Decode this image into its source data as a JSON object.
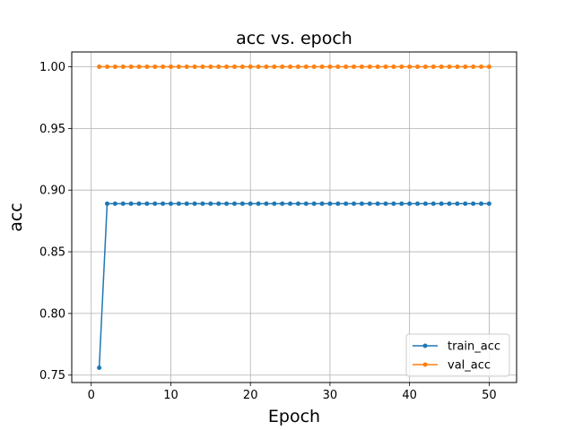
{
  "chart_data": {
    "type": "line",
    "title": "acc vs. epoch",
    "xlabel": "Epoch",
    "ylabel": "acc",
    "xlim": [
      -2.45,
      53.45
    ],
    "ylim": [
      0.744,
      1.012
    ],
    "xticks": [
      0,
      10,
      20,
      30,
      40,
      50
    ],
    "yticks": [
      0.75,
      0.8,
      0.85,
      0.9,
      0.95,
      1.0
    ],
    "ytick_labels": [
      "0.75",
      "0.80",
      "0.85",
      "0.90",
      "0.95",
      "1.00"
    ],
    "grid": true,
    "legend_position": "lower-right",
    "x": [
      1,
      2,
      3,
      4,
      5,
      6,
      7,
      8,
      9,
      10,
      11,
      12,
      13,
      14,
      15,
      16,
      17,
      18,
      19,
      20,
      21,
      22,
      23,
      24,
      25,
      26,
      27,
      28,
      29,
      30,
      31,
      32,
      33,
      34,
      35,
      36,
      37,
      38,
      39,
      40,
      41,
      42,
      43,
      44,
      45,
      46,
      47,
      48,
      49,
      50
    ],
    "series": [
      {
        "name": "train_acc",
        "color": "#1f77b4",
        "values": [
          0.756,
          0.889,
          0.889,
          0.889,
          0.889,
          0.889,
          0.889,
          0.889,
          0.889,
          0.889,
          0.889,
          0.889,
          0.889,
          0.889,
          0.889,
          0.889,
          0.889,
          0.889,
          0.889,
          0.889,
          0.889,
          0.889,
          0.889,
          0.889,
          0.889,
          0.889,
          0.889,
          0.889,
          0.889,
          0.889,
          0.889,
          0.889,
          0.889,
          0.889,
          0.889,
          0.889,
          0.889,
          0.889,
          0.889,
          0.889,
          0.889,
          0.889,
          0.889,
          0.889,
          0.889,
          0.889,
          0.889,
          0.889,
          0.889,
          0.889
        ]
      },
      {
        "name": "val_acc",
        "color": "#ff7f0e",
        "values": [
          1.0,
          1.0,
          1.0,
          1.0,
          1.0,
          1.0,
          1.0,
          1.0,
          1.0,
          1.0,
          1.0,
          1.0,
          1.0,
          1.0,
          1.0,
          1.0,
          1.0,
          1.0,
          1.0,
          1.0,
          1.0,
          1.0,
          1.0,
          1.0,
          1.0,
          1.0,
          1.0,
          1.0,
          1.0,
          1.0,
          1.0,
          1.0,
          1.0,
          1.0,
          1.0,
          1.0,
          1.0,
          1.0,
          1.0,
          1.0,
          1.0,
          1.0,
          1.0,
          1.0,
          1.0,
          1.0,
          1.0,
          1.0,
          1.0,
          1.0
        ]
      }
    ]
  }
}
